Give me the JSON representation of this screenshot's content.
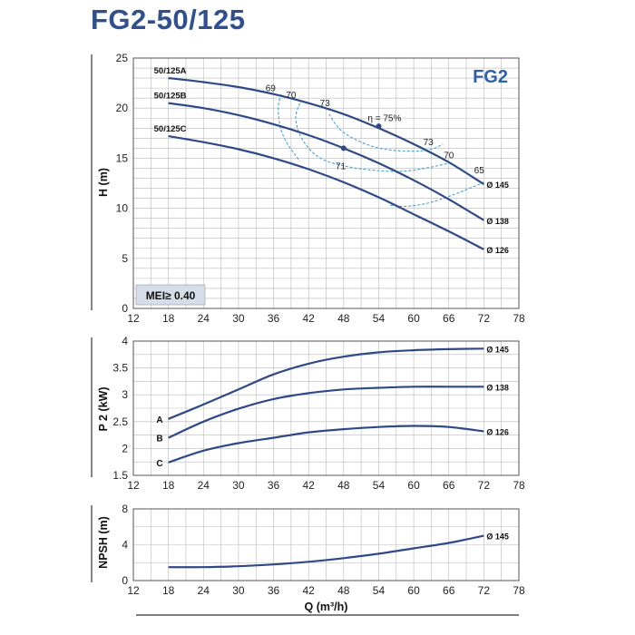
{
  "page": {
    "title": "FG2-50/125"
  },
  "colors": {
    "curve": "#2e4a86",
    "efficiency": "#4a9fd4",
    "grid": "#b9b9b9",
    "frame": "#555555",
    "badge": "#2f5fa7",
    "mei_bg": "#d7dde8"
  },
  "chart_data": [
    {
      "id": "head",
      "type": "line",
      "ylabel": "H (m)",
      "badge": "FG2",
      "mei_label": "MEI≥ 0.40",
      "xlim": [
        12,
        78
      ],
      "ylim": [
        0,
        25
      ],
      "xticks": [
        12,
        18,
        24,
        30,
        36,
        42,
        48,
        54,
        60,
        66,
        72,
        78
      ],
      "yticks": [
        0,
        5,
        10,
        15,
        20,
        25
      ],
      "grid": true,
      "series": [
        {
          "name": "50/125A",
          "end_label": "Ø 145",
          "x": [
            18,
            24,
            30,
            36,
            42,
            48,
            54,
            60,
            66,
            72
          ],
          "y": [
            23.0,
            22.6,
            22.1,
            21.4,
            20.5,
            19.4,
            18.0,
            16.4,
            14.6,
            12.4
          ]
        },
        {
          "name": "50/125B",
          "end_label": "Ø 138",
          "x": [
            18,
            24,
            30,
            36,
            42,
            48,
            54,
            60,
            66,
            72
          ],
          "y": [
            20.5,
            20.0,
            19.3,
            18.4,
            17.3,
            16.0,
            14.5,
            12.8,
            10.9,
            8.8
          ]
        },
        {
          "name": "50/125C",
          "end_label": "Ø 126",
          "x": [
            18,
            24,
            30,
            36,
            42,
            48,
            54,
            60,
            66,
            72
          ],
          "y": [
            17.2,
            16.6,
            15.9,
            15.0,
            13.9,
            12.6,
            11.1,
            9.4,
            7.7,
            5.9
          ]
        }
      ],
      "efficiency": [
        {
          "label": "69",
          "x": [
            37.3,
            36.8,
            37.2,
            38.3,
            39.5,
            40.5
          ],
          "y": [
            21.4,
            20.0,
            18.0,
            16.5,
            15.5,
            14.7
          ]
        },
        {
          "label": "70",
          "x": [
            40.5,
            39.8,
            40.8,
            43.5,
            47.5,
            53,
            58,
            62,
            66
          ],
          "y": [
            20.5,
            19.0,
            17.0,
            15.2,
            14.3,
            13.8,
            13.7,
            14.0,
            14.5
          ]
        },
        {
          "label": "73",
          "x": [
            45.5,
            47.5,
            51,
            55,
            60,
            63,
            65
          ],
          "y": [
            19.4,
            17.8,
            16.6,
            15.9,
            15.7,
            15.9,
            16.4
          ]
        },
        {
          "label": "65",
          "x": [
            56,
            59,
            63,
            67,
            70,
            72
          ],
          "y": [
            10.3,
            10.2,
            10.6,
            11.4,
            12.1,
            12.6
          ]
        }
      ],
      "annotations": [
        {
          "text": "69",
          "x": 35.5,
          "y": 21.7
        },
        {
          "text": "70",
          "x": 39.0,
          "y": 21.0
        },
        {
          "text": "73",
          "x": 44.8,
          "y": 20.2
        },
        {
          "text": "η = 75%",
          "x": 55.0,
          "y": 18.7
        },
        {
          "text": "73",
          "x": 62.5,
          "y": 16.3
        },
        {
          "text": "70",
          "x": 66.0,
          "y": 15.0
        },
        {
          "text": "71",
          "x": 47.5,
          "y": 13.9
        },
        {
          "text": "65",
          "x": 71.2,
          "y": 13.5
        }
      ],
      "markers": [
        {
          "x": 54,
          "y": 18.2
        },
        {
          "x": 48,
          "y": 16.0
        }
      ]
    },
    {
      "id": "power",
      "type": "line",
      "ylabel": "P 2 (kW)",
      "xlim": [
        12,
        78
      ],
      "ylim": [
        1.5,
        4
      ],
      "xticks": [
        12,
        18,
        24,
        30,
        36,
        42,
        48,
        54,
        60,
        66,
        72,
        78
      ],
      "yticks": [
        1.5,
        2,
        2.5,
        3,
        3.5,
        4
      ],
      "ytick_labels": [
        "1.5",
        "2",
        "2.5",
        "3",
        "3.5",
        "4"
      ],
      "grid": true,
      "series": [
        {
          "name": "A",
          "end_label": "Ø 145",
          "x": [
            18,
            24,
            30,
            36,
            42,
            48,
            54,
            60,
            66,
            72
          ],
          "y": [
            2.55,
            2.82,
            3.1,
            3.38,
            3.58,
            3.71,
            3.79,
            3.83,
            3.85,
            3.86
          ]
        },
        {
          "name": "B",
          "end_label": "Ø 138",
          "x": [
            18,
            24,
            30,
            36,
            42,
            48,
            54,
            60,
            66,
            72
          ],
          "y": [
            2.2,
            2.5,
            2.74,
            2.92,
            3.03,
            3.1,
            3.13,
            3.15,
            3.15,
            3.15
          ]
        },
        {
          "name": "C",
          "end_label": "Ø 126",
          "x": [
            18,
            24,
            30,
            36,
            42,
            48,
            54,
            60,
            66,
            72
          ],
          "y": [
            1.74,
            1.96,
            2.1,
            2.2,
            2.3,
            2.36,
            2.4,
            2.42,
            2.4,
            2.32
          ]
        }
      ]
    },
    {
      "id": "npsh",
      "type": "line",
      "ylabel": "NPSH (m)",
      "xlabel": "Q (m³/h)",
      "xlim": [
        12,
        78
      ],
      "ylim": [
        0,
        8
      ],
      "xticks": [
        12,
        18,
        24,
        30,
        36,
        42,
        48,
        54,
        60,
        66,
        72,
        78
      ],
      "yticks": [
        0,
        4,
        8
      ],
      "grid": true,
      "series": [
        {
          "name": "",
          "end_label": "Ø 145",
          "x": [
            18,
            24,
            30,
            36,
            42,
            48,
            54,
            60,
            66,
            72
          ],
          "y": [
            1.5,
            1.5,
            1.6,
            1.8,
            2.1,
            2.5,
            3.0,
            3.6,
            4.2,
            5.0
          ]
        }
      ]
    }
  ]
}
